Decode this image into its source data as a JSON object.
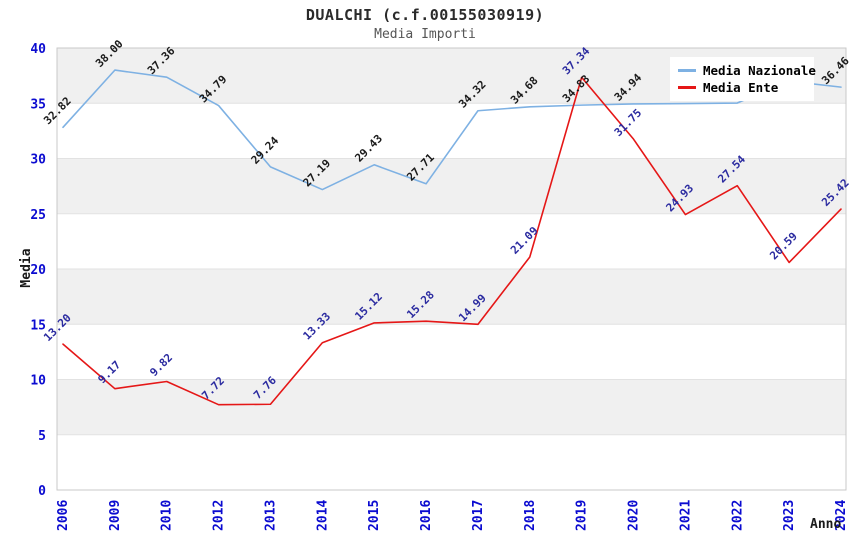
{
  "title": "DUALCHI (c.f.00155030919)",
  "subtitle": "Media Importi",
  "legend": {
    "position": "top-right",
    "items": [
      {
        "label": "Media Nazionale",
        "color": "#7eb1e3"
      },
      {
        "label": "Media Ente",
        "color": "#e51717"
      }
    ]
  },
  "colors": {
    "tick": "#0b0bd0",
    "band": "#f0f0f0",
    "gridline": "#e2e2e2",
    "plot_border": "#c9c9c9",
    "axis_label": "#1a1a1a",
    "title": "#2b2b2b",
    "subtitle": "#555555"
  },
  "chart_data": {
    "type": "line",
    "title": "DUALCHI (c.f.00155030919)",
    "subtitle": "Media Importi",
    "xlabel": "Anno",
    "ylabel": "Media",
    "ylim": [
      0,
      40
    ],
    "ytick_step": 5,
    "grid": "alternating-horizontal-bands",
    "legend_position": "top-right",
    "x": [
      "2006",
      "2009",
      "2010",
      "2012",
      "2013",
      "2014",
      "2015",
      "2016",
      "2017",
      "2018",
      "2019",
      "2020",
      "2021",
      "2022",
      "2023",
      "2024"
    ],
    "series": [
      {
        "name": "Media Nazionale",
        "color": "#7eb1e3",
        "label_color": "#1a1a1a",
        "values": [
          32.82,
          38.0,
          37.36,
          34.79,
          29.24,
          27.19,
          29.43,
          27.71,
          34.32,
          34.68,
          34.83,
          34.94,
          34.97,
          35.02,
          37.0,
          36.46
        ],
        "labels": [
          "32.82",
          "38.00",
          "37.36",
          "34.79",
          "29.24",
          "27.19",
          "29.43",
          "27.71",
          "34.32",
          "34.68",
          "34.83",
          "34.94",
          "",
          "",
          "",
          "36.46"
        ]
      },
      {
        "name": "Media Ente",
        "color": "#e51717",
        "label_color": "#2b2ba0",
        "values": [
          13.2,
          9.17,
          9.82,
          7.72,
          7.76,
          13.33,
          15.12,
          15.28,
          14.99,
          21.09,
          37.34,
          31.75,
          24.93,
          27.54,
          20.59,
          25.42
        ],
        "labels": [
          "13.20",
          "9.17",
          "9.82",
          "7.72",
          "7.76",
          "13.33",
          "15.12",
          "15.28",
          "14.99",
          "21.09",
          "37.34",
          "31.75",
          "24.93",
          "27.54",
          "20.59",
          "25.42"
        ]
      }
    ]
  }
}
